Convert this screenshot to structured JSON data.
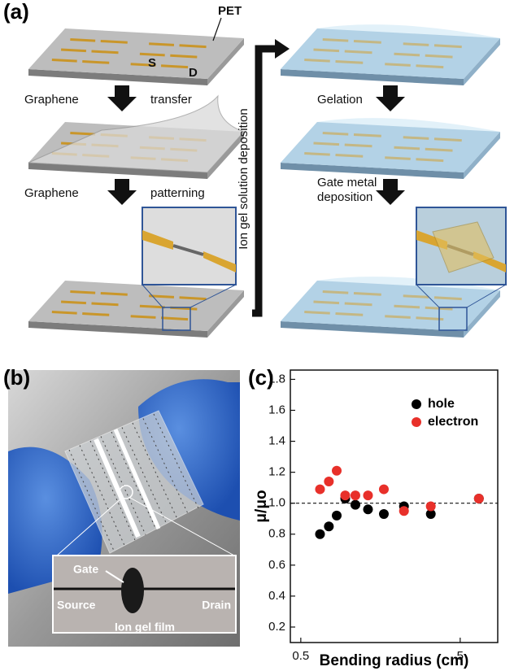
{
  "panel_a": {
    "label": "(a)",
    "pet": "PET",
    "source": "S",
    "drain": "D",
    "step1": [
      "Graphene",
      "transfer"
    ],
    "step2": [
      "Graphene",
      "patterning"
    ],
    "ion_gel": "Ion gel solution deposition",
    "gelation": "Gelation",
    "gate_metal": [
      "Gate metal",
      "deposition"
    ]
  },
  "panel_b": {
    "label": "(b)",
    "gate": "Gate",
    "source": "Source",
    "drain": "Drain",
    "film": "Ion gel film"
  },
  "chart_data": {
    "label": "(c)",
    "type": "scatter",
    "xlabel": "Bending radius (cm)",
    "ylabel": "μ/μo",
    "x_scale": "log",
    "xlim": [
      0.43,
      8.6
    ],
    "ylim": [
      0.1,
      1.86
    ],
    "xticks": [
      0.5,
      5
    ],
    "yticks": [
      0.2,
      0.4,
      0.6,
      0.8,
      {
        "value": 1,
        "label": "1.0"
      },
      1.2,
      1.4,
      1.6,
      1.8
    ],
    "reference_line": 1,
    "legend": "upper right",
    "x": [
      0.66,
      0.75,
      0.84,
      0.95,
      1.1,
      1.32,
      1.66,
      2.22,
      3.27,
      6.55
    ],
    "series": [
      {
        "name": "hole",
        "color": "#000000",
        "values": [
          0.8,
          0.85,
          0.92,
          1.03,
          0.99,
          0.96,
          0.93,
          0.98,
          0.93,
          1.03
        ]
      },
      {
        "name": "electron",
        "color": "#e8302a",
        "values": [
          1.09,
          1.14,
          1.21,
          1.05,
          1.05,
          1.05,
          1.09,
          0.95,
          0.98,
          1.03
        ]
      }
    ]
  }
}
